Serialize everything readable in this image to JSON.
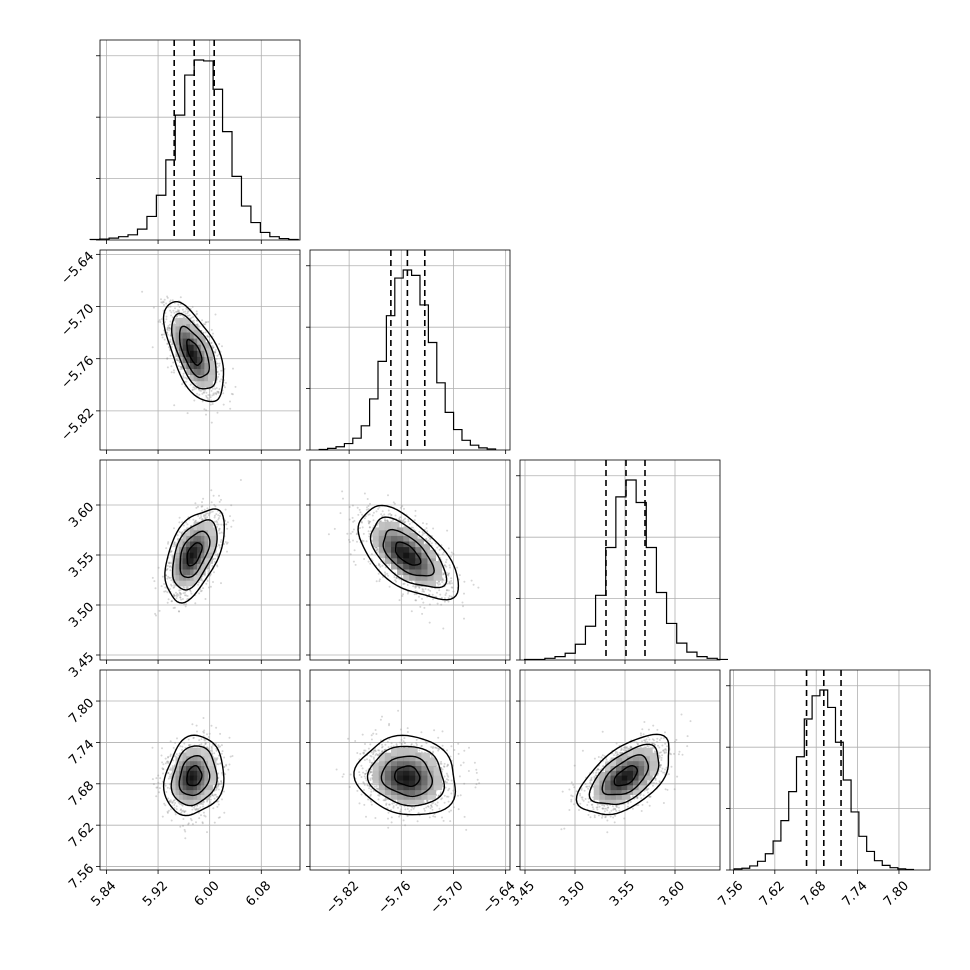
{
  "chart_data": {
    "type": "corner",
    "grid": true,
    "colors": {
      "ink": "#000000",
      "grid": "#b0b0b0",
      "scatter": "#8a8a8a"
    },
    "parameters": [
      {
        "index": 0,
        "range": [
          5.83,
          6.14
        ],
        "ticks": [
          5.84,
          5.92,
          6.0,
          6.08
        ],
        "tick_labels": [
          "5.84",
          "5.92",
          "6.00",
          "6.08"
        ],
        "quantiles": [
          5.945,
          5.976,
          6.007
        ],
        "hist_counts": [
          1,
          2,
          4,
          7,
          11,
          23,
          50,
          95,
          170,
          265,
          350,
          382,
          380,
          320,
          230,
          135,
          72,
          37,
          16,
          7,
          3,
          1
        ]
      },
      {
        "index": 1,
        "range": [
          -5.865,
          -5.635
        ],
        "ticks": [
          -5.82,
          -5.76,
          -5.7,
          -5.64
        ],
        "tick_labels": [
          "−5.82",
          "−5.76",
          "−5.70",
          "−5.64"
        ],
        "quantiles": [
          -5.772,
          -5.753,
          -5.733
        ],
        "hist_counts": [
          1,
          3,
          6,
          12,
          22,
          45,
          95,
          165,
          250,
          320,
          335,
          325,
          270,
          200,
          125,
          70,
          38,
          18,
          9,
          4,
          2
        ]
      },
      {
        "index": 2,
        "range": [
          3.445,
          3.645
        ],
        "ticks": [
          3.45,
          3.5,
          3.55,
          3.6
        ],
        "tick_labels": [
          "3.45",
          "3.50",
          "3.55",
          "3.60"
        ],
        "quantiles": [
          3.531,
          3.551,
          3.57
        ],
        "hist_counts": [
          1,
          1,
          3,
          6,
          12,
          28,
          60,
          115,
          200,
          290,
          320,
          280,
          200,
          120,
          65,
          30,
          14,
          6,
          3,
          1
        ]
      },
      {
        "index": 3,
        "range": [
          7.555,
          7.845
        ],
        "ticks": [
          7.56,
          7.62,
          7.68,
          7.74,
          7.8
        ],
        "tick_labels": [
          "7.56",
          "7.62",
          "7.68",
          "7.74",
          "7.80"
        ],
        "quantiles": [
          7.666,
          7.691,
          7.716
        ],
        "hist_counts": [
          2,
          3,
          7,
          15,
          28,
          50,
          85,
          135,
          195,
          260,
          300,
          310,
          280,
          220,
          155,
          100,
          58,
          32,
          16,
          8,
          4,
          2,
          1
        ]
      }
    ],
    "pairs": [
      {
        "x": 0,
        "y": 1,
        "mean": [
          5.976,
          -5.753
        ],
        "std": [
          0.02,
          0.025
        ],
        "corr": -0.6
      },
      {
        "x": 0,
        "y": 2,
        "mean": [
          5.976,
          3.551
        ],
        "std": [
          0.02,
          0.02
        ],
        "corr": 0.5
      },
      {
        "x": 1,
        "y": 2,
        "mean": [
          -5.753,
          3.551
        ],
        "std": [
          0.025,
          0.02
        ],
        "corr": -0.6
      },
      {
        "x": 0,
        "y": 3,
        "mean": [
          5.976,
          7.691
        ],
        "std": [
          0.02,
          0.025
        ],
        "corr": 0.15
      },
      {
        "x": 1,
        "y": 3,
        "mean": [
          -5.753,
          7.691
        ],
        "std": [
          0.025,
          0.025
        ],
        "corr": -0.1
      },
      {
        "x": 2,
        "y": 3,
        "mean": [
          3.551,
          7.691
        ],
        "std": [
          0.02,
          0.025
        ],
        "corr": 0.55
      }
    ],
    "contour_levels_sigma": [
      0.5,
      1.0,
      1.5,
      2.0
    ]
  }
}
